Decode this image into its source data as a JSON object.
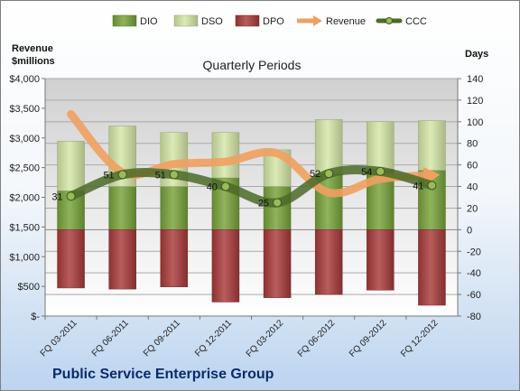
{
  "chart_data": {
    "type": "bar",
    "title": "Quarterly Periods",
    "company": "Public Service Enterprise Group",
    "left_axis_title": [
      "Revenue",
      "$millions"
    ],
    "right_axis_title": "Days",
    "categories": [
      "FQ 03-2011",
      "FQ 06-2011",
      "FQ 09-2011",
      "FQ 12-2011",
      "FQ 03-2012",
      "FQ 06-2012",
      "FQ 09-2012",
      "FQ 12-2012"
    ],
    "left_ylim": [
      0,
      4000
    ],
    "left_ticks": [
      "$-",
      "$500",
      "$1,000",
      "$1,500",
      "$2,000",
      "$2,500",
      "$3,000",
      "$3,500",
      "$4,000"
    ],
    "right_ylim": [
      -80,
      140
    ],
    "right_ticks": [
      "-80",
      "-60",
      "-40",
      "-20",
      "0",
      "20",
      "40",
      "60",
      "80",
      "100",
      "120",
      "140"
    ],
    "legend_position": "top",
    "series": [
      {
        "name": "DIO",
        "kind": "bar",
        "color": "#77a23a",
        "values": [
          36,
          40,
          40,
          48,
          40,
          52,
          56,
          55
        ]
      },
      {
        "name": "DSO",
        "kind": "bar",
        "color": "#d4e6a6",
        "values": [
          46,
          56,
          50,
          42,
          34,
          50,
          44,
          46
        ]
      },
      {
        "name": "DPO",
        "kind": "bar",
        "color": "#a83a3a",
        "values": [
          -54,
          -55,
          -53,
          -67,
          -63,
          -60,
          -56,
          -70
        ]
      },
      {
        "name": "Revenue",
        "kind": "line",
        "color": "#f0a060",
        "values": [
          3400,
          2420,
          2560,
          2600,
          2740,
          2080,
          2310,
          2370
        ]
      },
      {
        "name": "CCC",
        "kind": "line",
        "color": "#4c6a28",
        "values": [
          31,
          51,
          51,
          40,
          25,
          52,
          54,
          41
        ],
        "labels": [
          "31",
          "51",
          "51",
          "40",
          "25",
          "52",
          "54",
          "41"
        ]
      }
    ]
  }
}
